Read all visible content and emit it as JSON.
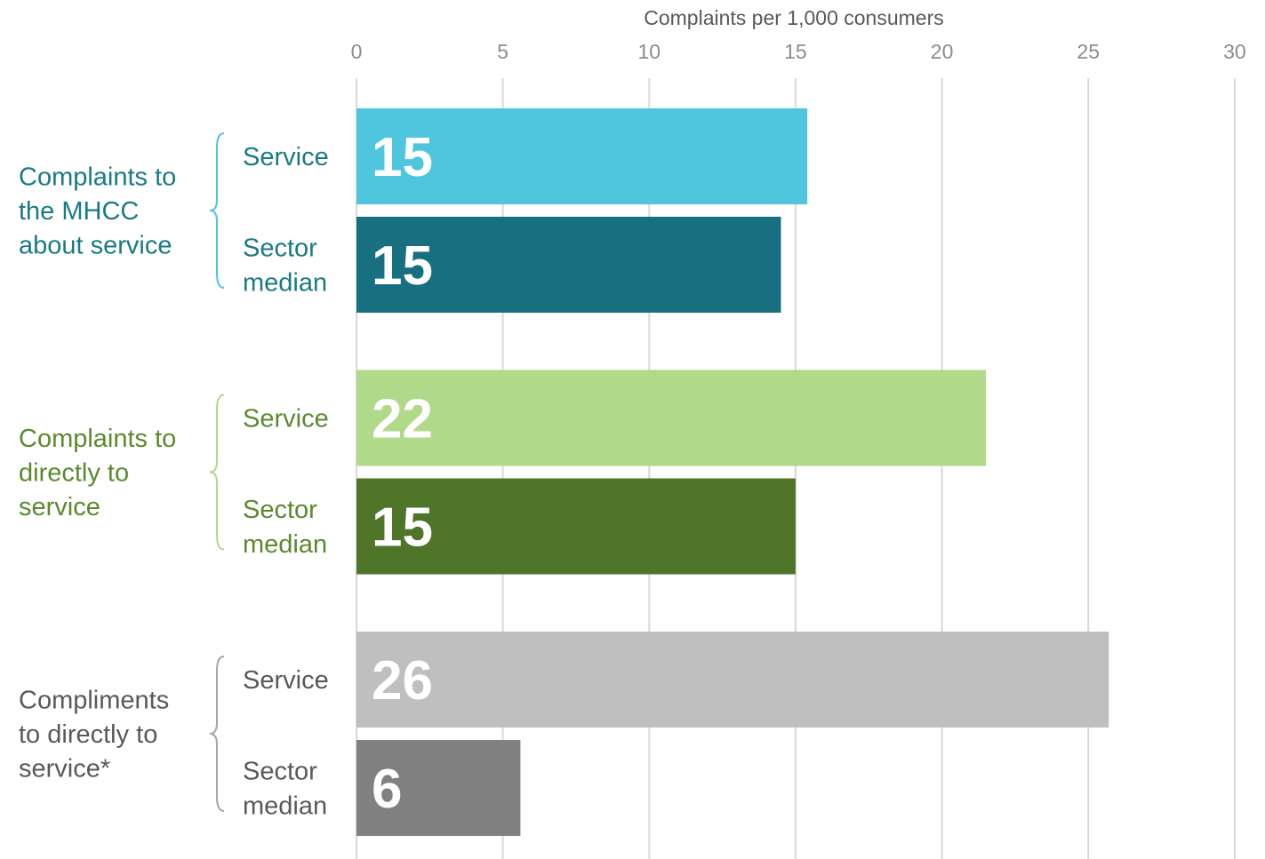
{
  "chart_data": {
    "type": "bar",
    "orientation": "horizontal",
    "xlabel": "Complaints per 1,000 consumers",
    "xlim": [
      0,
      30
    ],
    "xticks": [
      0,
      5,
      10,
      15,
      20,
      25,
      30
    ],
    "grid": true,
    "groups": [
      {
        "label_lines": [
          "Complaints to",
          "the MHCC",
          "about service"
        ],
        "label_color": "#1a7a85",
        "brace_color": "#4fc6de",
        "bars": [
          {
            "category_lines": [
              "Service"
            ],
            "value": 15.4,
            "data_label": "15",
            "color": "#4fc6de"
          },
          {
            "category_lines": [
              "Sector",
              "median"
            ],
            "value": 14.5,
            "data_label": "15",
            "color": "#186f80"
          }
        ]
      },
      {
        "label_lines": [
          "Complaints to",
          "directly to",
          "service"
        ],
        "label_color": "#5a8a2e",
        "brace_color": "#b0d98a",
        "bars": [
          {
            "category_lines": [
              "Service"
            ],
            "value": 21.5,
            "data_label": "22",
            "color": "#b0d98a"
          },
          {
            "category_lines": [
              "Sector",
              "median"
            ],
            "value": 15.0,
            "data_label": "15",
            "color": "#4f7529"
          }
        ]
      },
      {
        "label_lines": [
          "Compliments",
          "to directly to",
          "service*"
        ],
        "label_color": "#595959",
        "brace_color": "#a6a6a6",
        "bars": [
          {
            "category_lines": [
              "Service"
            ],
            "value": 25.7,
            "data_label": "26",
            "color": "#bfbfbf"
          },
          {
            "category_lines": [
              "Sector",
              "median"
            ],
            "value": 5.6,
            "data_label": "6",
            "color": "#808080"
          }
        ]
      }
    ]
  }
}
